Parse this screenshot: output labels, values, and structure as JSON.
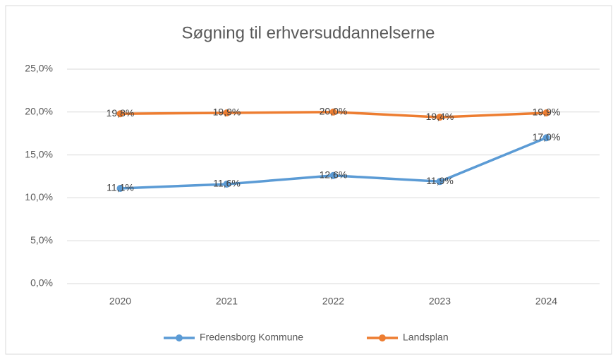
{
  "chart_data": {
    "type": "line",
    "title": "Søgning til erhversuddannelserne",
    "categories": [
      "2020",
      "2021",
      "2022",
      "2023",
      "2024"
    ],
    "series": [
      {
        "name": "Fredensborg Kommune",
        "color": "#5b9bd5",
        "values": [
          11.1,
          11.6,
          12.6,
          11.9,
          17.0
        ],
        "value_labels": [
          "11,1%",
          "11,6%",
          "12,6%",
          "11,9%",
          "17,0%"
        ]
      },
      {
        "name": "Landsplan",
        "color": "#ed7d31",
        "values": [
          19.8,
          19.9,
          20.0,
          19.4,
          19.9
        ],
        "value_labels": [
          "19,8%",
          "19,9%",
          "20,0%",
          "19,4%",
          "19,9%"
        ]
      }
    ],
    "ylim": [
      0,
      25
    ],
    "yticks": [
      {
        "value": 0,
        "label": "0,0%"
      },
      {
        "value": 5,
        "label": "5,0%"
      },
      {
        "value": 10,
        "label": "10,0%"
      },
      {
        "value": 15,
        "label": "15,0%"
      },
      {
        "value": 20,
        "label": "20,0%"
      },
      {
        "value": 25,
        "label": "25,0%"
      }
    ],
    "grid": true,
    "legend": "bottom"
  }
}
